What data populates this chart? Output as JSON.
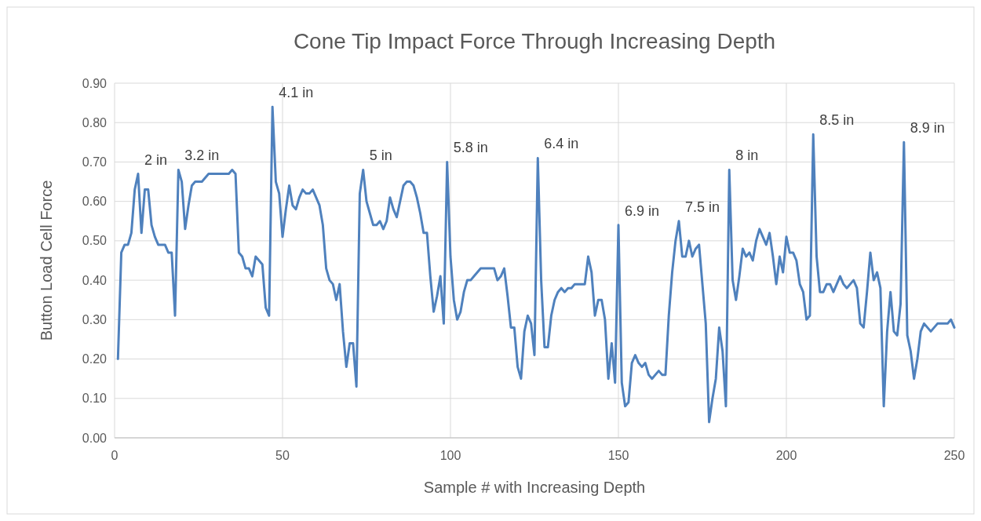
{
  "chart_data": {
    "type": "line",
    "title": "Cone Tip Impact Force Through Increasing Depth",
    "xlabel": "Sample # with Increasing Depth",
    "ylabel": "Button Load Cell Force",
    "xlim": [
      0,
      250
    ],
    "xticks": [
      0,
      50,
      100,
      150,
      200,
      250
    ],
    "ylim": [
      0,
      0.9
    ],
    "yticks": [
      {
        "value": 0,
        "label": "0.00"
      },
      {
        "value": 0.1,
        "label": "0.10"
      },
      {
        "value": 0.2,
        "label": "0.20"
      },
      {
        "value": 0.3,
        "label": "0.30"
      },
      {
        "value": 0.4,
        "label": "0.40"
      },
      {
        "value": 0.5,
        "label": "0.50"
      },
      {
        "value": 0.6,
        "label": "0.60"
      },
      {
        "value": 0.7,
        "label": "0.70"
      },
      {
        "value": 0.8,
        "label": "0.80"
      },
      {
        "value": 0.9,
        "label": "0.90"
      }
    ],
    "grid": true,
    "marker": "none",
    "line_style": "solid",
    "annotations": [
      {
        "text": "2 in",
        "x": 7,
        "y": 0.67
      },
      {
        "text": "3.2 in",
        "x": 19,
        "y": 0.68
      },
      {
        "text": "4.1 in",
        "x": 47,
        "y": 0.84
      },
      {
        "text": "5 in",
        "x": 74,
        "y": 0.68
      },
      {
        "text": "5.8 in",
        "x": 99,
        "y": 0.7
      },
      {
        "text": "6.4 in",
        "x": 126,
        "y": 0.71
      },
      {
        "text": "6.9 in",
        "x": 150,
        "y": 0.54
      },
      {
        "text": "7.5 in",
        "x": 168,
        "y": 0.55
      },
      {
        "text": "8 in",
        "x": 183,
        "y": 0.68
      },
      {
        "text": "8.5 in",
        "x": 208,
        "y": 0.77
      },
      {
        "text": "8.9 in",
        "x": 235,
        "y": 0.75
      }
    ],
    "x": [
      1,
      2,
      3,
      4,
      5,
      6,
      7,
      8,
      9,
      10,
      11,
      12,
      13,
      14,
      15,
      16,
      17,
      18,
      19,
      20,
      21,
      22,
      23,
      24,
      25,
      26,
      27,
      28,
      29,
      30,
      31,
      32,
      33,
      34,
      35,
      36,
      37,
      38,
      39,
      40,
      41,
      42,
      43,
      44,
      45,
      46,
      47,
      48,
      49,
      50,
      51,
      52,
      53,
      54,
      55,
      56,
      57,
      58,
      59,
      60,
      61,
      62,
      63,
      64,
      65,
      66,
      67,
      68,
      69,
      70,
      71,
      72,
      73,
      74,
      75,
      76,
      77,
      78,
      79,
      80,
      81,
      82,
      83,
      84,
      85,
      86,
      87,
      88,
      89,
      90,
      91,
      92,
      93,
      94,
      95,
      96,
      97,
      98,
      99,
      100,
      101,
      102,
      103,
      104,
      105,
      106,
      107,
      108,
      109,
      110,
      111,
      112,
      113,
      114,
      115,
      116,
      117,
      118,
      119,
      120,
      121,
      122,
      123,
      124,
      125,
      126,
      127,
      128,
      129,
      130,
      131,
      132,
      133,
      134,
      135,
      136,
      137,
      138,
      139,
      140,
      141,
      142,
      143,
      144,
      145,
      146,
      147,
      148,
      149,
      150,
      151,
      152,
      153,
      154,
      155,
      156,
      157,
      158,
      159,
      160,
      161,
      162,
      163,
      164,
      165,
      166,
      167,
      168,
      169,
      170,
      171,
      172,
      173,
      174,
      175,
      176,
      177,
      178,
      179,
      180,
      181,
      182,
      183,
      184,
      185,
      186,
      187,
      188,
      189,
      190,
      191,
      192,
      193,
      194,
      195,
      196,
      197,
      198,
      199,
      200,
      201,
      202,
      203,
      204,
      205,
      206,
      207,
      208,
      209,
      210,
      211,
      212,
      213,
      214,
      215,
      216,
      217,
      218,
      219,
      220,
      221,
      222,
      223,
      224,
      225,
      226,
      227,
      228,
      229,
      230,
      231,
      232,
      233,
      234,
      235,
      236,
      237,
      238,
      239,
      240,
      241,
      242,
      243,
      244,
      245,
      246,
      247,
      248,
      249,
      250
    ],
    "series": [
      {
        "color": "#4f81bd",
        "values": [
          0.2,
          0.47,
          0.49,
          0.49,
          0.52,
          0.63,
          0.67,
          0.52,
          0.63,
          0.63,
          0.54,
          0.51,
          0.49,
          0.49,
          0.49,
          0.47,
          0.47,
          0.31,
          0.68,
          0.65,
          0.53,
          0.59,
          0.64,
          0.65,
          0.65,
          0.65,
          0.66,
          0.67,
          0.67,
          0.67,
          0.67,
          0.67,
          0.67,
          0.67,
          0.68,
          0.67,
          0.47,
          0.46,
          0.43,
          0.43,
          0.41,
          0.46,
          0.45,
          0.44,
          0.33,
          0.31,
          0.84,
          0.65,
          0.62,
          0.51,
          0.58,
          0.64,
          0.59,
          0.58,
          0.61,
          0.63,
          0.62,
          0.62,
          0.63,
          0.61,
          0.59,
          0.54,
          0.43,
          0.4,
          0.39,
          0.35,
          0.39,
          0.27,
          0.18,
          0.24,
          0.24,
          0.13,
          0.62,
          0.68,
          0.6,
          0.57,
          0.54,
          0.54,
          0.55,
          0.53,
          0.55,
          0.61,
          0.58,
          0.56,
          0.6,
          0.64,
          0.65,
          0.65,
          0.64,
          0.61,
          0.57,
          0.52,
          0.52,
          0.41,
          0.32,
          0.36,
          0.41,
          0.29,
          0.7,
          0.46,
          0.35,
          0.3,
          0.32,
          0.37,
          0.4,
          0.4,
          0.41,
          0.42,
          0.43,
          0.43,
          0.43,
          0.43,
          0.43,
          0.4,
          0.41,
          0.43,
          0.36,
          0.28,
          0.28,
          0.18,
          0.15,
          0.27,
          0.31,
          0.29,
          0.21,
          0.71,
          0.4,
          0.23,
          0.23,
          0.31,
          0.35,
          0.37,
          0.38,
          0.37,
          0.38,
          0.38,
          0.39,
          0.39,
          0.39,
          0.39,
          0.46,
          0.42,
          0.31,
          0.35,
          0.35,
          0.3,
          0.15,
          0.24,
          0.14,
          0.54,
          0.14,
          0.08,
          0.09,
          0.19,
          0.21,
          0.19,
          0.18,
          0.19,
          0.16,
          0.15,
          0.16,
          0.17,
          0.16,
          0.16,
          0.31,
          0.42,
          0.5,
          0.55,
          0.46,
          0.46,
          0.5,
          0.46,
          0.48,
          0.49,
          0.39,
          0.29,
          0.04,
          0.1,
          0.15,
          0.28,
          0.22,
          0.08,
          0.68,
          0.4,
          0.35,
          0.41,
          0.48,
          0.46,
          0.47,
          0.45,
          0.5,
          0.53,
          0.51,
          0.49,
          0.52,
          0.46,
          0.39,
          0.46,
          0.42,
          0.51,
          0.47,
          0.47,
          0.45,
          0.39,
          0.37,
          0.3,
          0.31,
          0.77,
          0.46,
          0.37,
          0.37,
          0.39,
          0.39,
          0.37,
          0.39,
          0.41,
          0.39,
          0.38,
          0.39,
          0.4,
          0.38,
          0.29,
          0.28,
          0.37,
          0.47,
          0.4,
          0.42,
          0.38,
          0.08,
          0.27,
          0.37,
          0.27,
          0.26,
          0.34,
          0.75,
          0.26,
          0.22,
          0.15,
          0.2,
          0.27,
          0.29,
          0.28,
          0.27,
          0.28,
          0.29,
          0.29,
          0.29,
          0.29,
          0.3,
          0.28
        ]
      }
    ]
  }
}
